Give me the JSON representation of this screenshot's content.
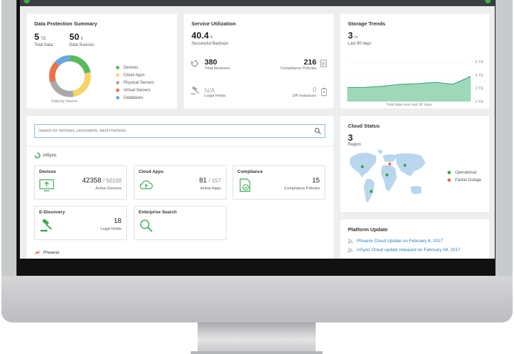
{
  "protection": {
    "title": "Data Protection Summary",
    "total_data_value": "5",
    "total_data_unit": "TB",
    "total_data_label": "Total Data",
    "sources_value": "50",
    "sources_unit": "K",
    "sources_label": "Data Sources",
    "donut_caption": "Data by Source",
    "legend": [
      {
        "label": "Devices",
        "color": "#5cb85c",
        "share": 0.22
      },
      {
        "label": "Cloud Apps",
        "color": "#f6d36b",
        "share": 0.25
      },
      {
        "label": "Physical Servers",
        "color": "#a9a9a9",
        "share": 0.23
      },
      {
        "label": "Virtual Servers",
        "color": "#e8734a",
        "share": 0.17
      },
      {
        "label": "Databases",
        "color": "#6aa8d8",
        "share": 0.13
      }
    ]
  },
  "utilization": {
    "title": "Service Utilization",
    "backups_value": "40.4",
    "backups_unit": "K",
    "backups_label": "Successful Backups",
    "restores_value": "380",
    "restores_label": "Total Restores",
    "policies_value": "216",
    "policies_label": "Compliance Policies",
    "holds_value": "N/A",
    "holds_label": "Legal Holds",
    "dr_value": "0",
    "dr_label": "DR Instances"
  },
  "storage": {
    "title": "Storage Trends",
    "value": "3",
    "unit": "%",
    "period": "Last 90 days",
    "caption": "Total data over last 90 days",
    "chart_data": {
      "type": "area",
      "x": [
        0,
        1,
        2,
        3,
        4,
        5,
        6,
        7
      ],
      "values": [
        2.1,
        2.15,
        2.3,
        2.6,
        2.7,
        2.9,
        2.6,
        3.8
      ],
      "y_ticks": [
        "6 TB",
        "4 TB",
        "2 TB",
        "0 TB"
      ],
      "ylim": [
        0,
        6
      ],
      "color": "#9fd8b9",
      "line_color": "#2e9e6b"
    }
  },
  "search": {
    "placeholder": "Search for Services, Documents, Best Practices"
  },
  "insync": {
    "label": "inSync",
    "tiles": {
      "devices": {
        "name": "Devices",
        "value": "42358",
        "of": "/ 50100",
        "sub": "Active Devices"
      },
      "cloud_apps": {
        "name": "Cloud Apps",
        "value": "81",
        "of": "/ 157",
        "sub": "Active Apps"
      },
      "compliance": {
        "name": "Compliance",
        "value": "15",
        "sub": "Compliance Policies"
      },
      "ediscovery": {
        "name": "E-Discovery",
        "value": "18",
        "sub": "Legal Holds"
      },
      "enterprise_search": {
        "name": "Enterprise Search"
      }
    }
  },
  "phoenix": {
    "label": "Phoenix"
  },
  "cloud_status": {
    "title": "Cloud Status",
    "value": "3",
    "label": "Region",
    "legend": [
      {
        "label": "Operational",
        "color": "#3aa655"
      },
      {
        "label": "Partial Outage",
        "color": "#e8734a"
      }
    ]
  },
  "platform_update": {
    "title": "Platform Update",
    "items": [
      "Phoenix Cloud Update on February 6, 2017",
      "inSync Cloud update released on February 04, 2017"
    ]
  },
  "colors": {
    "accent": "#2d7bb5",
    "brand_green": "#3fae4a"
  }
}
